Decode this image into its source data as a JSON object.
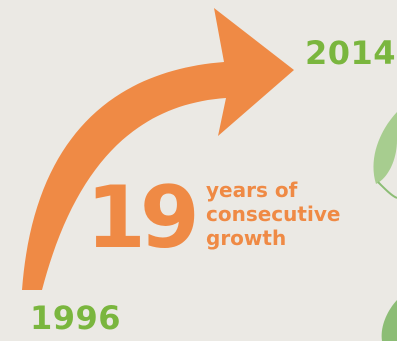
{
  "colors": {
    "background": "#ebe9e4",
    "arrow": "#ef8a45",
    "year": "#7ab63e",
    "accent_text": "#ef8a45",
    "leaf_light": "#a7cd8f",
    "leaf_dark": "#8cbd75"
  },
  "graphic": {
    "start_year": "1996",
    "end_year": "2014",
    "big_number": "19",
    "caption_lines": [
      "years of",
      "consecutive",
      "growth"
    ]
  },
  "icons": {
    "arrow": "curved-arrow-icon",
    "leaves": "leaf-icon"
  }
}
